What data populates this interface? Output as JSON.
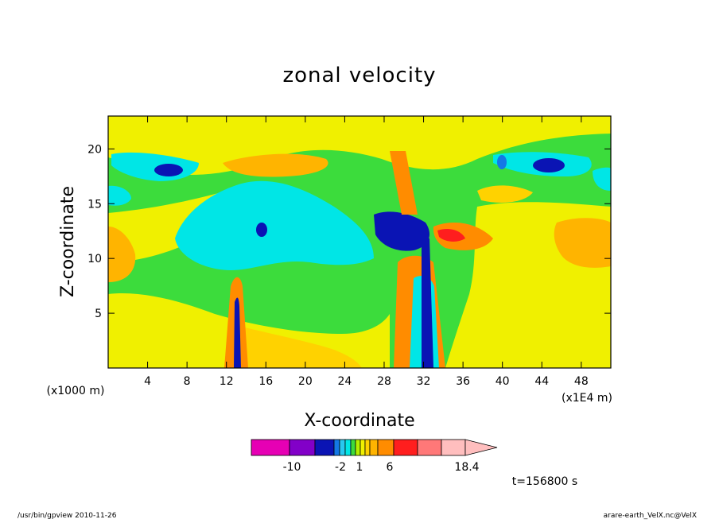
{
  "chart_data": {
    "type": "heatmap",
    "title": "zonal velocity",
    "xlabel": "X-coordinate",
    "ylabel": "Z-coordinate",
    "x_unit_left": "(x1000 m)",
    "x_unit_right": "(x1E4 m)",
    "xlim": [
      0,
      51
    ],
    "ylim": [
      0,
      23
    ],
    "x_ticks": [
      4,
      8,
      12,
      16,
      20,
      24,
      28,
      32,
      36,
      40,
      44,
      48
    ],
    "y_ticks": [
      5,
      10,
      15,
      20
    ],
    "colorbar": {
      "labels": [
        "-10",
        "-2",
        "1",
        "6",
        "18.4"
      ],
      "colors": [
        "#e600b4",
        "#8200c8",
        "#0a14b4",
        "#1478e6",
        "#28c8f0",
        "#00e6e6",
        "#3cdc3c",
        "#b4f000",
        "#f0f000",
        "#ffd200",
        "#ffb400",
        "#ff8c00",
        "#ff1e1e",
        "#ff7878",
        "#ffbebe"
      ]
    },
    "regions": [
      {
        "x": [
          0,
          51
        ],
        "y": [
          0,
          23
        ],
        "level": "green"
      },
      {
        "x": [
          1,
          14
        ],
        "y": [
          0.3,
          9
        ],
        "level": "yellow"
      },
      {
        "x": [
          14,
          27
        ],
        "y": [
          0.3,
          6.5
        ],
        "level": "yellow"
      },
      {
        "x": [
          35,
          51
        ],
        "y": [
          0.3,
          5.5
        ],
        "level": "yellow"
      },
      {
        "x": [
          40,
          51
        ],
        "y": [
          6,
          15
        ],
        "level": "yellow"
      },
      {
        "x": [
          0,
          51
        ],
        "y": [
          15.5,
          23
        ],
        "level": "yellow"
      },
      {
        "x": [
          14,
          26
        ],
        "y": [
          0.5,
          5
        ],
        "level": "light-orange"
      },
      {
        "x": [
          0,
          4
        ],
        "y": [
          8.5,
          13
        ],
        "level": "orange"
      },
      {
        "x": [
          44,
          51
        ],
        "y": [
          9.5,
          13
        ],
        "level": "orange"
      },
      {
        "x": [
          12,
          29
        ],
        "y": [
          8,
          16
        ],
        "level": "cyan"
      },
      {
        "x": [
          0,
          9
        ],
        "y": [
          18,
          21
        ],
        "level": "cyan"
      },
      {
        "x": [
          39,
          51
        ],
        "y": [
          17,
          20
        ],
        "level": "cyan"
      },
      {
        "x": [
          27,
          33
        ],
        "y": [
          11,
          14
        ],
        "level": "dark-blue"
      },
      {
        "x": [
          5,
          8
        ],
        "y": [
          17.5,
          19
        ],
        "level": "dark-blue"
      },
      {
        "x": [
          42,
          46
        ],
        "y": [
          18,
          19.5
        ],
        "level": "dark-blue"
      },
      {
        "x": [
          11,
          19
        ],
        "y": [
          18.5,
          20.5
        ],
        "level": "orange"
      },
      {
        "x": [
          31,
          37
        ],
        "y": [
          11,
          14
        ],
        "level": "red"
      }
    ]
  },
  "annotations": {
    "time": "t=156800 s",
    "footer_left": "/usr/bin/gpview  2010-11-26",
    "footer_right": "arare-earth_VelX.nc@VelX"
  }
}
